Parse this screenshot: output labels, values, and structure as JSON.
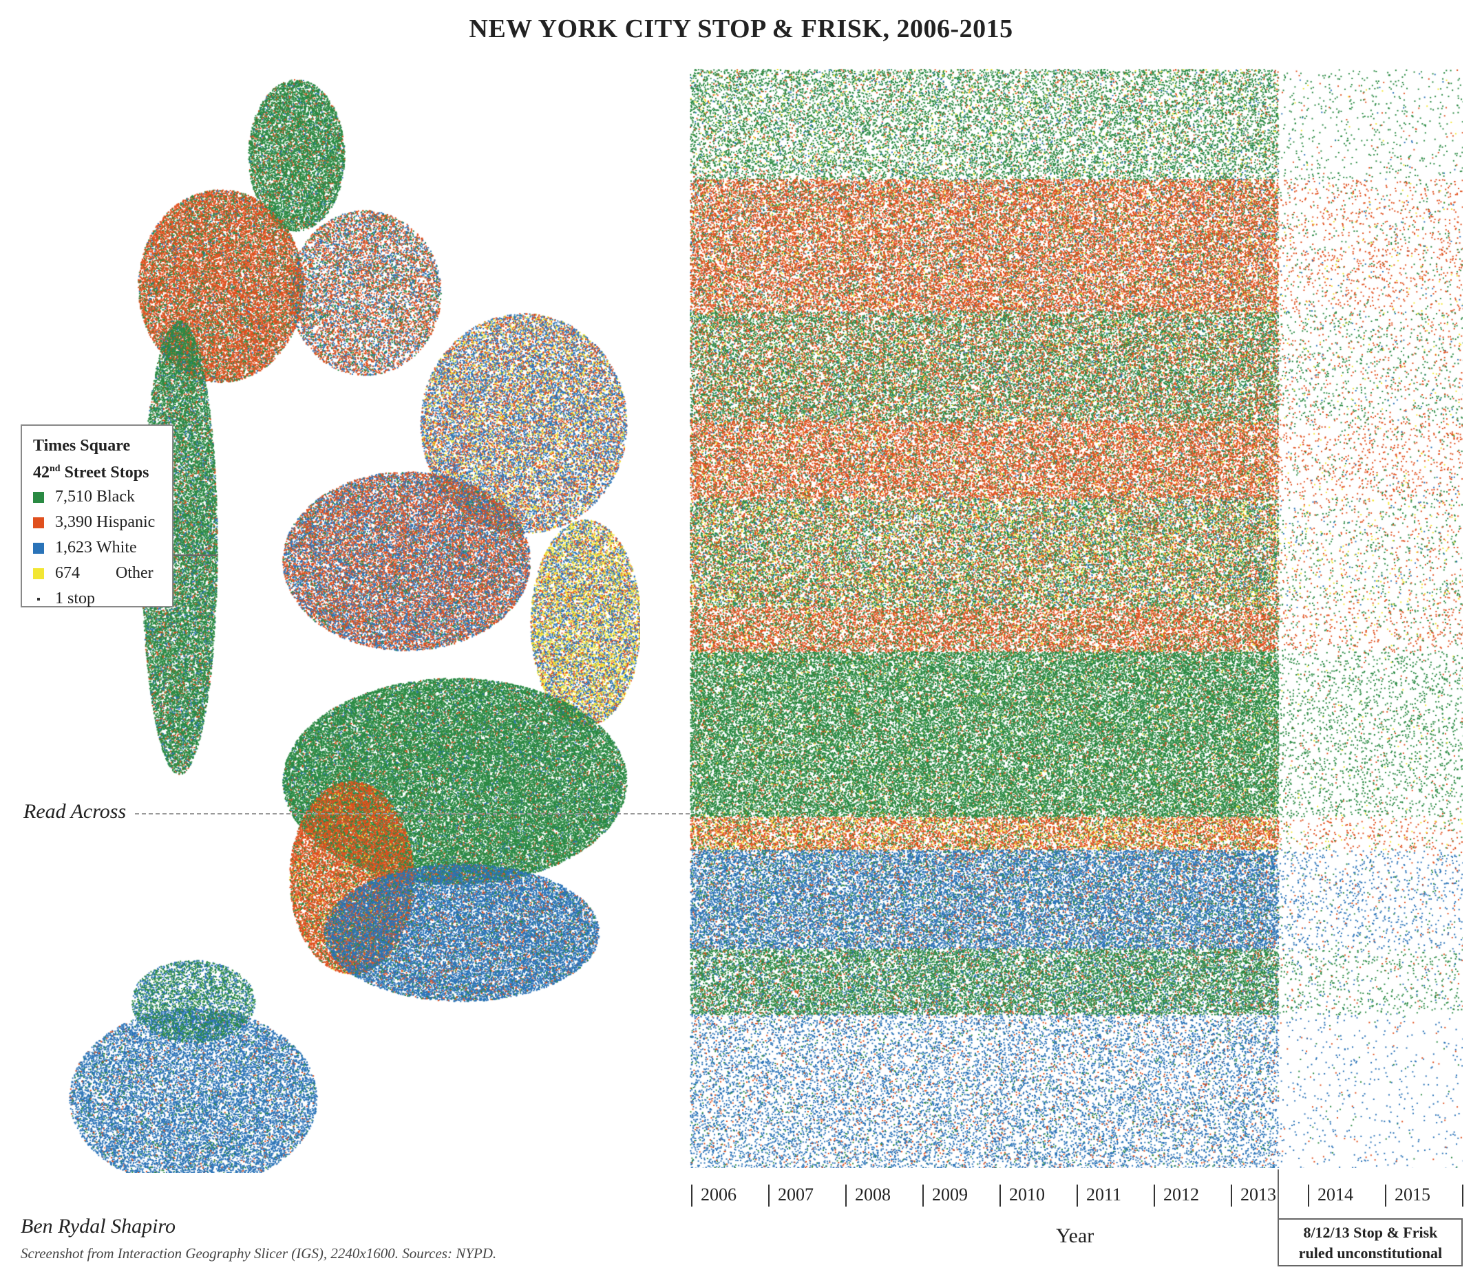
{
  "title": "NEW YORK CITY STOP & FRISK, 2006-2015",
  "colors": {
    "black": "#2a8a43",
    "hispanic": "#e0501e",
    "white": "#2a73b8",
    "other": "#f2e634"
  },
  "legend": {
    "title_line1": "Times Square",
    "title_line2_num": "42",
    "title_line2_sup": "nd",
    "title_line2_rest": " Street Stops",
    "items": [
      {
        "count": "7,510",
        "label": "Black",
        "color": "#2a8a43"
      },
      {
        "count": "3,390",
        "label": "Hispanic",
        "color": "#e0501e"
      },
      {
        "count": "1,623",
        "label": "White",
        "color": "#2a73b8"
      },
      {
        "count": "674",
        "label": "Other",
        "color": "#f2e634"
      }
    ],
    "unit": "1 stop"
  },
  "read_across": "Read Across",
  "chart_data": {
    "type": "scatter",
    "xlabel": "Year",
    "ticks": [
      "2006",
      "2007",
      "2008",
      "2009",
      "2010",
      "2011",
      "2012",
      "2013",
      "2014",
      "2015"
    ],
    "xlim": [
      2006,
      2016
    ],
    "series": [
      {
        "name": "Black",
        "color": "#2a8a43"
      },
      {
        "name": "Hispanic",
        "color": "#e0501e"
      },
      {
        "name": "White",
        "color": "#2a73b8"
      },
      {
        "name": "Other",
        "color": "#f2e634"
      }
    ],
    "annotation": {
      "date": "2013-08-12",
      "line1": "8/12/13 Stop & Frisk",
      "line2": "ruled unconstitutional"
    }
  },
  "credit": {
    "author": "Ben Rydal Shapiro",
    "caption": "Screenshot from Interaction Geography Slicer (IGS), 2240x1600. Sources: NYPD."
  }
}
